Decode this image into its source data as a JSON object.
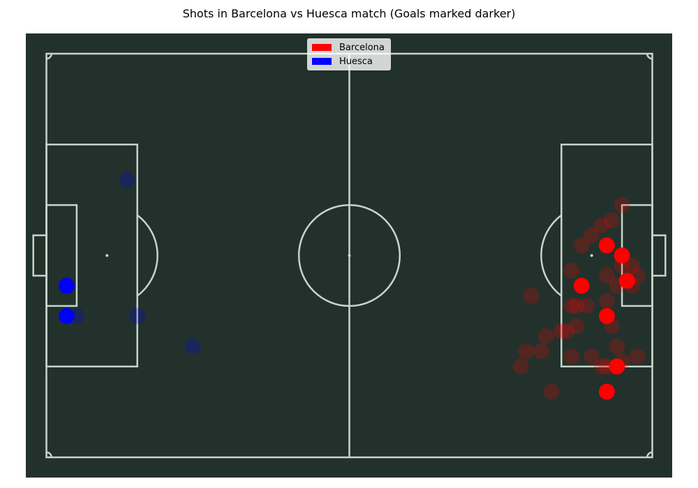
{
  "chart_data": {
    "type": "scatter",
    "title": "Shots in Barcelona vs Huesca match (Goals marked darker)",
    "xlim": [
      0,
      120
    ],
    "ylim": [
      0,
      80
    ],
    "pitch": {
      "background": "#22312b",
      "line_color": "#c7d5cc"
    },
    "legend": {
      "position": "top-center"
    },
    "series": [
      {
        "name": "Barcelona",
        "color": "#ff0000",
        "shots": [
          {
            "x": 114,
            "y": 30,
            "goal": false
          },
          {
            "x": 112,
            "y": 33,
            "goal": false
          },
          {
            "x": 110,
            "y": 34,
            "goal": false
          },
          {
            "x": 108,
            "y": 36,
            "goal": false
          },
          {
            "x": 106,
            "y": 38,
            "goal": false
          },
          {
            "x": 117,
            "y": 44,
            "goal": false
          },
          {
            "x": 111,
            "y": 44,
            "goal": false
          },
          {
            "x": 116,
            "y": 42,
            "goal": false
          },
          {
            "x": 114,
            "y": 42,
            "goal": false
          },
          {
            "x": 116,
            "y": 46,
            "goal": false
          },
          {
            "x": 104,
            "y": 43,
            "goal": false
          },
          {
            "x": 111,
            "y": 49,
            "goal": false
          },
          {
            "x": 105,
            "y": 50,
            "goal": false
          },
          {
            "x": 112,
            "y": 54,
            "goal": false
          },
          {
            "x": 117,
            "y": 60,
            "goal": false
          },
          {
            "x": 114,
            "y": 61,
            "goal": false
          },
          {
            "x": 104,
            "y": 60,
            "goal": false
          },
          {
            "x": 108,
            "y": 60,
            "goal": false
          },
          {
            "x": 103,
            "y": 55,
            "goal": false
          },
          {
            "x": 105,
            "y": 54,
            "goal": false
          },
          {
            "x": 102,
            "y": 55,
            "goal": false
          },
          {
            "x": 107,
            "y": 50,
            "goal": false
          },
          {
            "x": 113,
            "y": 58,
            "goal": false
          },
          {
            "x": 98,
            "y": 59,
            "goal": false
          },
          {
            "x": 95,
            "y": 59,
            "goal": false
          },
          {
            "x": 94,
            "y": 62,
            "goal": false
          },
          {
            "x": 110,
            "y": 62,
            "goal": false
          },
          {
            "x": 100,
            "y": 67,
            "goal": false
          },
          {
            "x": 111,
            "y": 62,
            "goal": false
          },
          {
            "x": 113,
            "y": 46,
            "goal": false
          },
          {
            "x": 104,
            "y": 50,
            "goal": false
          },
          {
            "x": 96,
            "y": 48,
            "goal": false
          },
          {
            "x": 99,
            "y": 56,
            "goal": false
          },
          {
            "x": 111,
            "y": 38,
            "goal": true
          },
          {
            "x": 114,
            "y": 40,
            "goal": true
          },
          {
            "x": 115,
            "y": 45,
            "goal": true
          },
          {
            "x": 106,
            "y": 46,
            "goal": true
          },
          {
            "x": 111,
            "y": 52,
            "goal": true
          },
          {
            "x": 113,
            "y": 62,
            "goal": true
          },
          {
            "x": 111,
            "y": 67,
            "goal": true
          }
        ]
      },
      {
        "name": "Huesca",
        "color": "#0000ff",
        "shots": [
          {
            "x": 16,
            "y": 25,
            "goal": false
          },
          {
            "x": 6,
            "y": 52,
            "goal": false
          },
          {
            "x": 18,
            "y": 52,
            "goal": false
          },
          {
            "x": 29,
            "y": 58,
            "goal": false
          },
          {
            "x": 4,
            "y": 46,
            "goal": true
          },
          {
            "x": 4,
            "y": 52,
            "goal": true
          }
        ]
      }
    ]
  }
}
